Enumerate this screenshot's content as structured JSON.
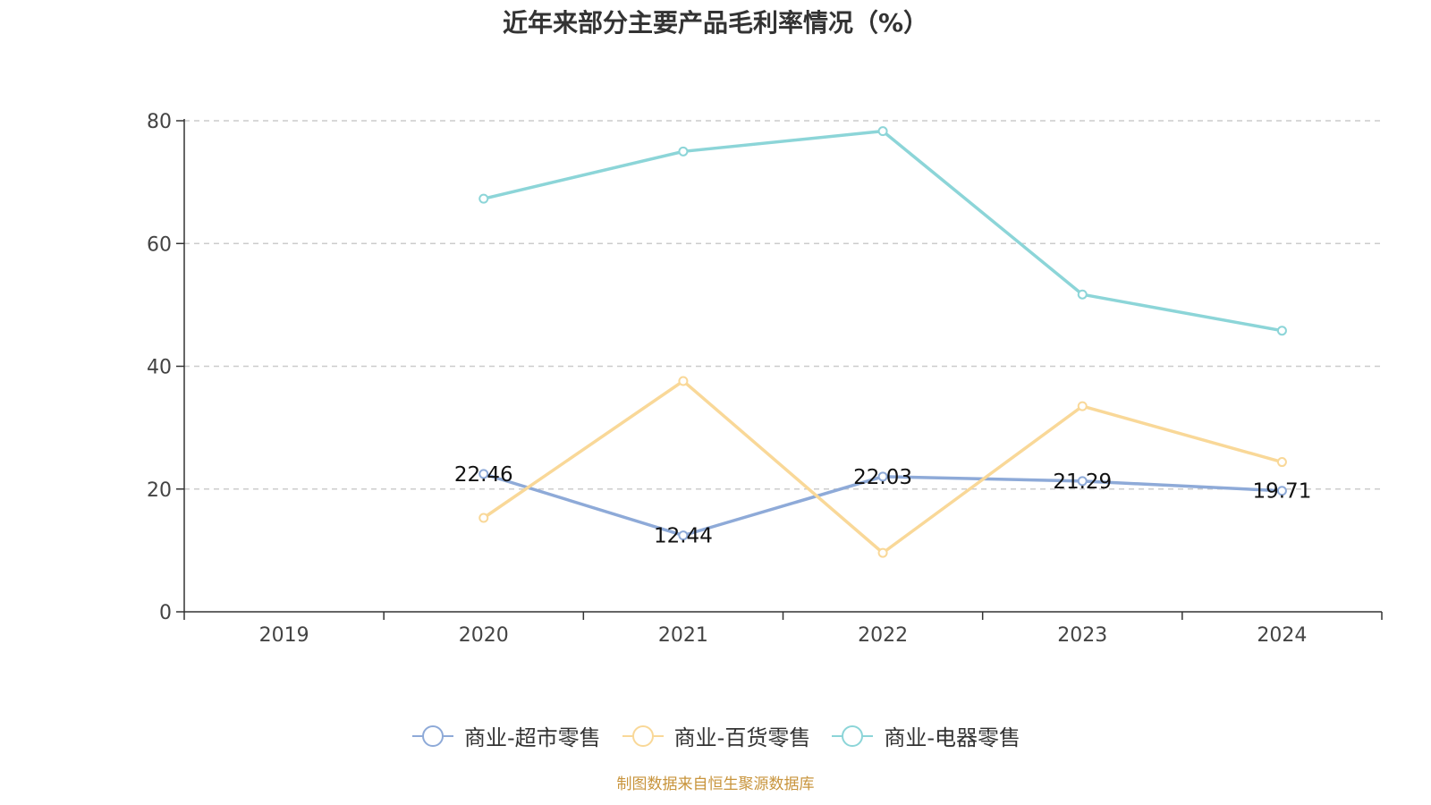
{
  "footer": {
    "source": "制图数据来自恒生聚源数据库"
  },
  "chart_data": {
    "type": "line",
    "title": "近年来部分主要产品毛利率情况（%）",
    "categories": [
      "2019",
      "2020",
      "2021",
      "2022",
      "2023",
      "2024"
    ],
    "ylim": [
      0,
      80
    ],
    "yticks": [
      0,
      20,
      40,
      60,
      80
    ],
    "grid": true,
    "legend_position": "bottom",
    "series": [
      {
        "name": "商业-超市零售",
        "color": "#8eaad8",
        "values": [
          null,
          22.46,
          12.44,
          22.03,
          21.29,
          19.71
        ],
        "show_labels": true
      },
      {
        "name": "商业-百货零售",
        "color": "#f9d898",
        "values": [
          null,
          15.3,
          37.6,
          9.6,
          33.5,
          24.4
        ],
        "show_labels": false
      },
      {
        "name": "商业-电器零售",
        "color": "#8cd5d8",
        "values": [
          null,
          67.3,
          75.0,
          78.3,
          51.7,
          45.8
        ],
        "show_labels": false
      }
    ]
  }
}
